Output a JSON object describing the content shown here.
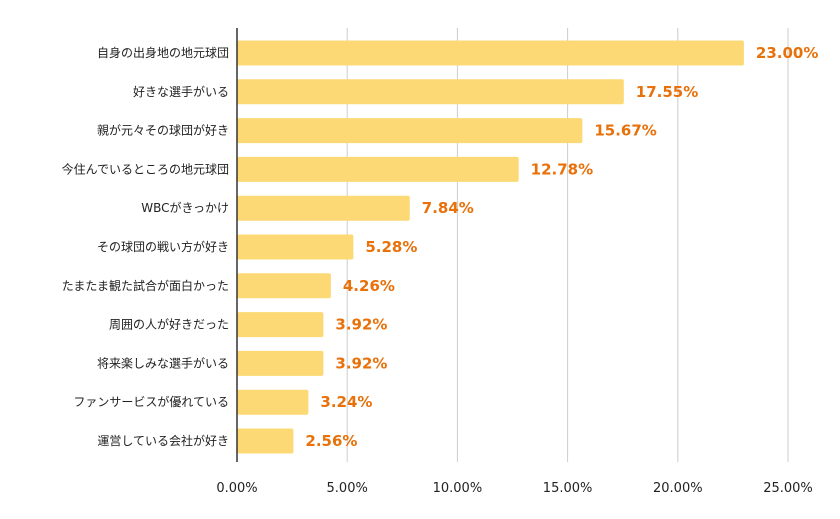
{
  "chart_data": {
    "type": "bar",
    "orientation": "horizontal",
    "categories": [
      "自身の出身地の地元球団",
      "好きな選手がいる",
      "親が元々その球団が好き",
      "今住んでいるところの地元球団",
      "WBCがきっかけ",
      "その球団の戦い方が好き",
      "たまたま観た試合が面白かった",
      "周囲の人が好きだった",
      "将来楽しみな選手がいる",
      "ファンサービスが優れている",
      "運営している会社が好き"
    ],
    "values": [
      23.0,
      17.55,
      15.67,
      12.78,
      7.84,
      5.28,
      4.26,
      3.92,
      3.92,
      3.24,
      2.56
    ],
    "data_labels": [
      "23.00%",
      "17.55%",
      "15.67%",
      "12.78%",
      "7.84%",
      "5.28%",
      "4.26%",
      "3.92%",
      "3.92%",
      "3.24%",
      "2.56%"
    ],
    "xlim": [
      0,
      25
    ],
    "xticks": [
      0,
      5,
      10,
      15,
      20,
      25
    ],
    "xtick_labels": [
      "0.00%",
      "5.00%",
      "10.00%",
      "15.00%",
      "20.00%",
      "25.00%"
    ],
    "grid": "vertical",
    "legend": "none",
    "colors": {
      "bar": "#fcd974",
      "label": "#e8710a",
      "grid": "#cccccc",
      "axis": "#333333"
    }
  }
}
